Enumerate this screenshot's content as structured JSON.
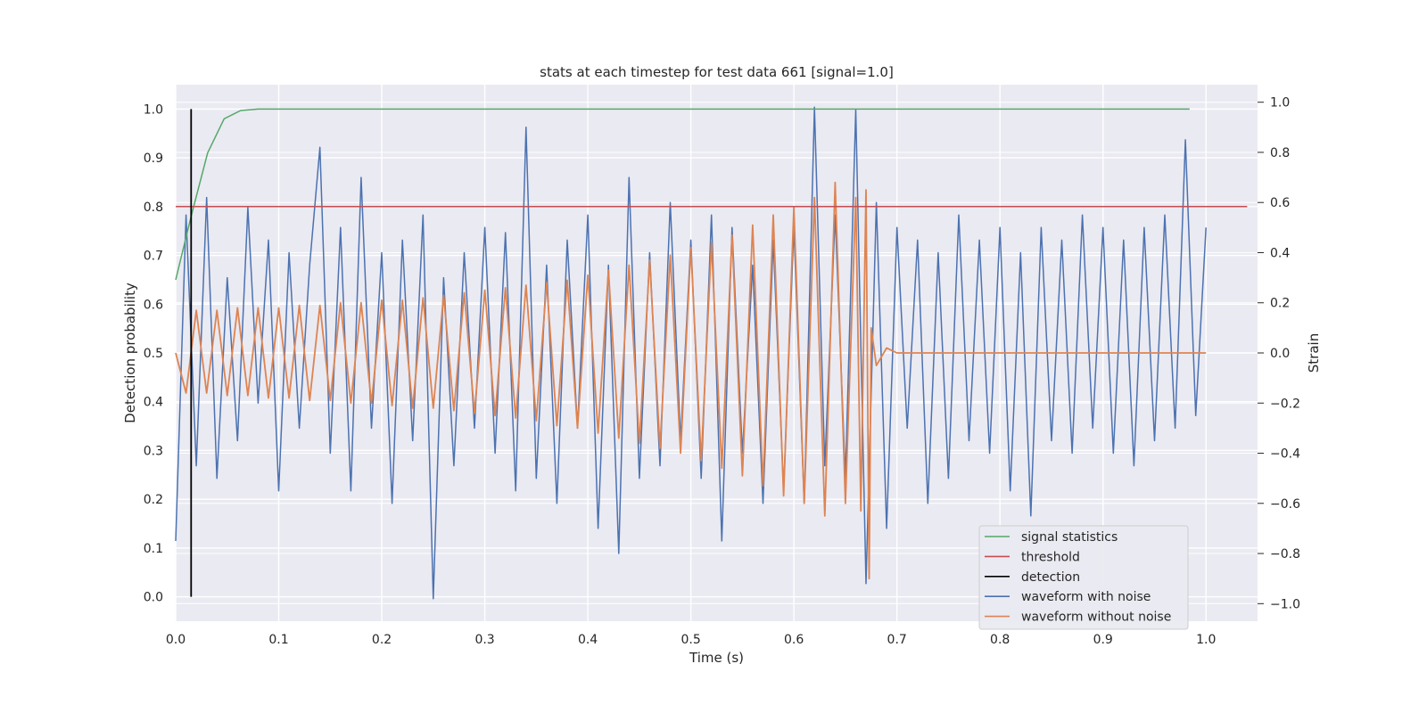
{
  "chart_data": {
    "type": "line",
    "title": "stats at each timestep for test data 661 [signal=1.0]",
    "xlabel": "Time (s)",
    "ylabel_left": "Detection probability",
    "ylabel_right": "Strain",
    "xlim": [
      0.0,
      1.05
    ],
    "ylim_left": [
      -0.05,
      1.05
    ],
    "ylim_right": [
      -1.07,
      1.07
    ],
    "x_ticks": [
      0.0,
      0.1,
      0.2,
      0.3,
      0.4,
      0.5,
      0.6,
      0.7,
      0.8,
      0.9,
      1.0
    ],
    "x_tick_labels": [
      "0.0",
      "0.1",
      "0.2",
      "0.3",
      "0.4",
      "0.5",
      "0.6",
      "0.7",
      "0.8",
      "0.9",
      "1.0"
    ],
    "y_left_ticks": [
      0.0,
      0.1,
      0.2,
      0.3,
      0.4,
      0.5,
      0.6,
      0.7,
      0.8,
      0.9,
      1.0
    ],
    "y_left_tick_labels": [
      "0.0",
      "0.1",
      "0.2",
      "0.3",
      "0.4",
      "0.5",
      "0.6",
      "0.7",
      "0.8",
      "0.9",
      "1.0"
    ],
    "y_right_ticks": [
      -1.0,
      -0.8,
      -0.6,
      -0.4,
      -0.2,
      0.0,
      0.2,
      0.4,
      0.6,
      0.8,
      1.0
    ],
    "y_right_tick_labels": [
      "−1.0",
      "−0.8",
      "−0.6",
      "−0.4",
      "−0.2",
      "0.0",
      "0.2",
      "0.4",
      "0.6",
      "0.8",
      "1.0"
    ],
    "grid": true,
    "legend_position": "lower-right",
    "colors": {
      "background": "#eaeaf2",
      "grid": "#ffffff",
      "signal_statistics": "#55a868",
      "threshold": "#c44e52",
      "detection": "#000000",
      "waveform_noise": "#4c72b0",
      "waveform_clean": "#dd8452"
    },
    "series": [
      {
        "name": "signal statistics",
        "axis": "left",
        "x": [
          0.0,
          0.015,
          0.031,
          0.047,
          0.063,
          0.08,
          0.15,
          0.3,
          0.5,
          0.7,
          0.9,
          0.984
        ],
        "y": [
          0.65,
          0.78,
          0.91,
          0.98,
          0.997,
          1.0,
          1.0,
          1.0,
          1.0,
          1.0,
          1.0,
          1.0
        ]
      },
      {
        "name": "threshold",
        "axis": "left",
        "x": [
          0.0,
          1.04
        ],
        "y": [
          0.8,
          0.8
        ]
      },
      {
        "name": "detection",
        "axis": "left",
        "x": [
          0.015,
          0.015
        ],
        "y": [
          0.0,
          1.0
        ]
      },
      {
        "name": "waveform with noise",
        "axis": "right",
        "x": [
          0.0,
          0.01,
          0.02,
          0.03,
          0.04,
          0.05,
          0.06,
          0.07,
          0.08,
          0.09,
          0.1,
          0.11,
          0.12,
          0.13,
          0.14,
          0.15,
          0.16,
          0.17,
          0.18,
          0.19,
          0.2,
          0.21,
          0.22,
          0.23,
          0.24,
          0.25,
          0.26,
          0.27,
          0.28,
          0.29,
          0.3,
          0.31,
          0.32,
          0.33,
          0.34,
          0.35,
          0.36,
          0.37,
          0.38,
          0.39,
          0.4,
          0.41,
          0.42,
          0.43,
          0.44,
          0.45,
          0.46,
          0.47,
          0.48,
          0.49,
          0.5,
          0.51,
          0.52,
          0.53,
          0.54,
          0.55,
          0.56,
          0.57,
          0.58,
          0.59,
          0.6,
          0.61,
          0.62,
          0.63,
          0.64,
          0.65,
          0.66,
          0.67,
          0.68,
          0.69,
          0.7,
          0.71,
          0.72,
          0.73,
          0.74,
          0.75,
          0.76,
          0.77,
          0.78,
          0.79,
          0.8,
          0.81,
          0.82,
          0.83,
          0.84,
          0.85,
          0.86,
          0.87,
          0.88,
          0.89,
          0.9,
          0.91,
          0.92,
          0.93,
          0.94,
          0.95,
          0.96,
          0.97,
          0.98,
          0.99,
          1.0
        ],
        "y": [
          -0.75,
          0.55,
          -0.45,
          0.62,
          -0.5,
          0.3,
          -0.35,
          0.58,
          -0.2,
          0.45,
          -0.55,
          0.4,
          -0.3,
          0.35,
          0.82,
          -0.4,
          0.5,
          -0.55,
          0.7,
          -0.3,
          0.4,
          -0.6,
          0.45,
          -0.35,
          0.55,
          -0.98,
          0.3,
          -0.45,
          0.4,
          -0.3,
          0.5,
          -0.4,
          0.48,
          -0.55,
          0.9,
          -0.5,
          0.35,
          -0.6,
          0.45,
          -0.3,
          0.55,
          -0.7,
          0.35,
          -0.8,
          0.7,
          -0.5,
          0.4,
          -0.45,
          0.6,
          -0.35,
          0.45,
          -0.5,
          0.55,
          -0.75,
          0.5,
          -0.4,
          0.35,
          -0.6,
          0.45,
          -0.55,
          0.5,
          -0.6,
          0.98,
          -0.45,
          0.55,
          -0.5,
          0.97,
          -0.92,
          0.6,
          -0.7,
          0.5,
          -0.3,
          0.45,
          -0.6,
          0.4,
          -0.5,
          0.55,
          -0.35,
          0.45,
          -0.4,
          0.5,
          -0.55,
          0.4,
          -0.65,
          0.5,
          -0.35,
          0.45,
          -0.4,
          0.55,
          -0.3,
          0.5,
          -0.4,
          0.45,
          -0.45,
          0.5,
          -0.35,
          0.55,
          -0.3,
          0.85,
          -0.25,
          0.5
        ]
      },
      {
        "name": "waveform without noise",
        "axis": "right",
        "x": [
          0.0,
          0.01,
          0.02,
          0.03,
          0.04,
          0.05,
          0.06,
          0.07,
          0.08,
          0.09,
          0.1,
          0.11,
          0.12,
          0.13,
          0.14,
          0.15,
          0.16,
          0.17,
          0.18,
          0.19,
          0.2,
          0.21,
          0.22,
          0.23,
          0.24,
          0.25,
          0.26,
          0.27,
          0.28,
          0.29,
          0.3,
          0.31,
          0.32,
          0.33,
          0.34,
          0.35,
          0.36,
          0.37,
          0.38,
          0.39,
          0.4,
          0.41,
          0.42,
          0.43,
          0.44,
          0.45,
          0.46,
          0.47,
          0.48,
          0.49,
          0.5,
          0.51,
          0.52,
          0.53,
          0.54,
          0.55,
          0.56,
          0.57,
          0.58,
          0.59,
          0.6,
          0.61,
          0.62,
          0.63,
          0.64,
          0.65,
          0.66,
          0.665,
          0.67,
          0.673,
          0.675,
          0.68,
          0.69,
          0.7,
          0.75,
          0.8,
          0.9,
          1.0
        ],
        "y": [
          0.0,
          -0.16,
          0.17,
          -0.16,
          0.17,
          -0.17,
          0.18,
          -0.17,
          0.18,
          -0.18,
          0.18,
          -0.18,
          0.19,
          -0.19,
          0.19,
          -0.19,
          0.2,
          -0.2,
          0.2,
          -0.2,
          0.21,
          -0.21,
          0.21,
          -0.22,
          0.22,
          -0.22,
          0.23,
          -0.23,
          0.24,
          -0.24,
          0.25,
          -0.25,
          0.26,
          -0.26,
          0.27,
          -0.27,
          0.28,
          -0.29,
          0.29,
          -0.3,
          0.31,
          -0.32,
          0.33,
          -0.34,
          0.35,
          -0.36,
          0.37,
          -0.38,
          0.39,
          -0.4,
          0.42,
          -0.43,
          0.44,
          -0.46,
          0.47,
          -0.49,
          0.51,
          -0.53,
          0.55,
          -0.57,
          0.58,
          -0.6,
          0.62,
          -0.65,
          0.68,
          -0.6,
          0.62,
          -0.63,
          0.65,
          -0.9,
          0.1,
          -0.05,
          0.02,
          0.0,
          0.0,
          0.0,
          0.0,
          0.0
        ]
      }
    ]
  }
}
